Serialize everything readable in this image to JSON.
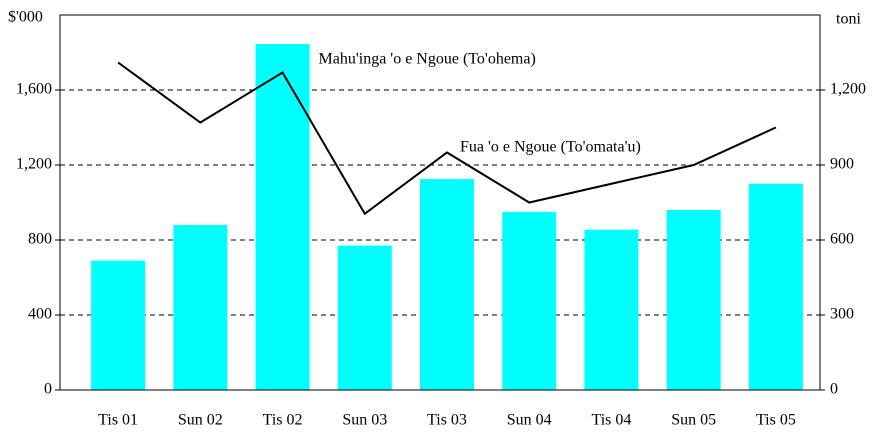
{
  "chart_data": {
    "type": "bar_line",
    "y_label": "$'000",
    "y2_label": "toni",
    "categories": [
      "Tis 01",
      "Sun 02",
      "Tis 02",
      "Sun 03",
      "Tis 03",
      "Sun 04",
      "Tis 04",
      "Sun 05",
      "Tis 05"
    ],
    "series": [
      {
        "name": "Mahu'inga 'o e Ngoue (To'ohema)",
        "type": "bar",
        "color": "#00ffff",
        "axis": "y",
        "values": [
          690,
          880,
          1845,
          770,
          1125,
          950,
          855,
          960,
          1100
        ]
      },
      {
        "name": "Fua 'o e Ngoue (To'omata'u)",
        "type": "line",
        "color": "#000000",
        "axis": "y2",
        "values": [
          1310,
          1070,
          1270,
          705,
          950,
          750,
          825,
          900,
          1050
        ]
      }
    ],
    "ylim": [
      0,
      2000
    ],
    "yticks": [
      0,
      400,
      800,
      {
        "value": 1200,
        "label": "1,200"
      },
      {
        "value": 1600,
        "label": "1,600"
      }
    ],
    "y2lim": [
      0,
      1500
    ],
    "y2ticks": [
      0,
      300,
      600,
      900,
      {
        "value": 1200,
        "label": "1,200"
      }
    ],
    "grid": true
  }
}
